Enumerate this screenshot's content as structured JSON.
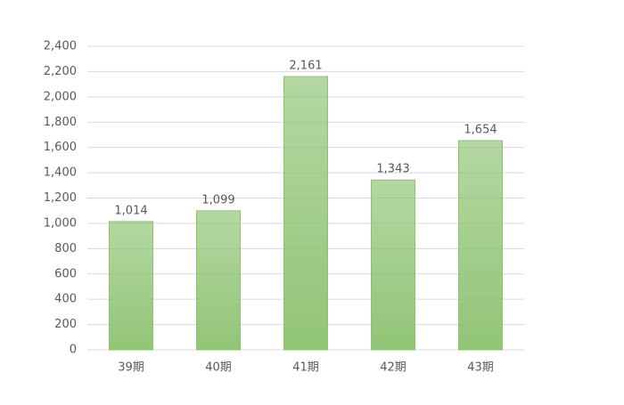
{
  "chart_data": {
    "type": "bar",
    "categories": [
      "39期",
      "40期",
      "41期",
      "42期",
      "43期"
    ],
    "values": [
      1014,
      1099,
      2161,
      1343,
      1654
    ],
    "value_labels": [
      "1,014",
      "1,099",
      "2,161",
      "1,343",
      "1,654"
    ],
    "color": "#8cc270",
    "ylim": [
      0,
      2400
    ],
    "yticks": [
      0,
      200,
      400,
      600,
      800,
      {
        "value": 1000,
        "label": "1,000"
      },
      {
        "value": 1200,
        "label": "1,200"
      },
      {
        "value": 1400,
        "label": "1,400"
      },
      {
        "value": 1600,
        "label": "1,600"
      },
      {
        "value": 1800,
        "label": "1,800"
      },
      {
        "value": 2000,
        "label": "2,000"
      },
      {
        "value": 2200,
        "label": "2,200"
      },
      {
        "value": 2400,
        "label": "2,400"
      }
    ],
    "grid": true
  }
}
